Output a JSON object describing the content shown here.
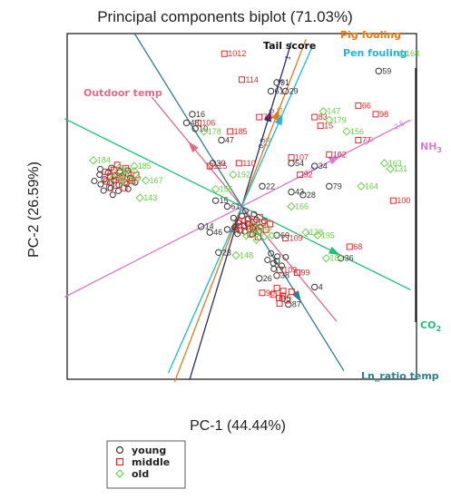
{
  "chart_data": {
    "type": "scatter",
    "subtype": "biplot",
    "title": "Principal components biplot (71.03%)",
    "xlabel": "PC-1  (44.44%)",
    "ylabel": "PC-2 (26.59%)",
    "xlim": [
      -3,
      3
    ],
    "ylim": [
      -3,
      3
    ],
    "grid": false,
    "legend_position": "bottom-left",
    "colors": {
      "young": "#333333",
      "middle": "#e8262a",
      "old": "#6ccf4a",
      "Tail score": "#2d2a6e",
      "Pig fouling": "#e07b1a",
      "Pen fouling": "#22b5d6",
      "Outdoor temp": "#e06a8a",
      "NH3": "#d67bd6",
      "CO2": "#1fbf7a",
      "Ln_ratio temp": "#2f7f8f"
    },
    "series": [
      {
        "name": "young",
        "marker": "circle",
        "points": [
          {
            "label": "59",
            "x": 2.35,
            "y": 2.35
          },
          {
            "label": "61",
            "x": 0.5,
            "y": 2.0
          },
          {
            "label": "29",
            "x": 0.75,
            "y": 2.0
          },
          {
            "label": "91",
            "x": 0.6,
            "y": 2.15
          },
          {
            "label": "16",
            "x": -0.85,
            "y": 1.6
          },
          {
            "label": "48",
            "x": -0.95,
            "y": 1.45
          },
          {
            "label": "10",
            "x": -0.8,
            "y": 1.35
          },
          {
            "label": "47",
            "x": -0.35,
            "y": 1.15
          },
          {
            "label": "30",
            "x": -0.5,
            "y": 0.75
          },
          {
            "label": "54",
            "x": 0.85,
            "y": 0.75
          },
          {
            "label": "34",
            "x": 1.25,
            "y": 0.7
          },
          {
            "label": "22",
            "x": 0.35,
            "y": 0.35
          },
          {
            "label": "43",
            "x": 0.85,
            "y": 0.25
          },
          {
            "label": "28",
            "x": 1.05,
            "y": 0.2
          },
          {
            "label": "79",
            "x": 1.5,
            "y": 0.35
          },
          {
            "label": "15",
            "x": -0.45,
            "y": 0.1
          },
          {
            "label": "61",
            "x": -0.25,
            "y": 0.0
          },
          {
            "label": "14",
            "x": -0.7,
            "y": -0.35
          },
          {
            "label": "46",
            "x": -0.55,
            "y": -0.45
          },
          {
            "label": "33",
            "x": -0.25,
            "y": -0.4
          },
          {
            "label": "60",
            "x": 0.6,
            "y": -0.5
          },
          {
            "label": "23",
            "x": -0.4,
            "y": -0.8
          },
          {
            "label": "36",
            "x": 1.7,
            "y": -0.9
          },
          {
            "label": "38",
            "x": 0.6,
            "y": -1.2
          },
          {
            "label": "26",
            "x": 0.3,
            "y": -1.25
          },
          {
            "label": "4",
            "x": 1.25,
            "y": -1.4
          },
          {
            "label": "87",
            "x": 0.8,
            "y": -1.7
          },
          {
            "label": "5",
            "x": 0.7,
            "y": -1.6
          }
        ]
      },
      {
        "name": "middle",
        "marker": "square",
        "points": [
          {
            "label": "1012",
            "x": -0.3,
            "y": 2.65
          },
          {
            "label": "114",
            "x": 0.0,
            "y": 2.2
          },
          {
            "label": "66",
            "x": 2.0,
            "y": 1.75
          },
          {
            "label": "98",
            "x": 2.3,
            "y": 1.6
          },
          {
            "label": "78",
            "x": 0.3,
            "y": 1.55
          },
          {
            "label": "83",
            "x": 1.25,
            "y": 1.55
          },
          {
            "label": "15",
            "x": 1.35,
            "y": 1.4
          },
          {
            "label": "185",
            "x": -0.2,
            "y": 1.3
          },
          {
            "label": "106",
            "x": -0.75,
            "y": 1.45
          },
          {
            "label": "77",
            "x": 2.0,
            "y": 1.15
          },
          {
            "label": "102",
            "x": 1.5,
            "y": 0.9
          },
          {
            "label": "107",
            "x": 0.85,
            "y": 0.85
          },
          {
            "label": "110",
            "x": -0.05,
            "y": 0.75
          },
          {
            "label": "125",
            "x": -0.55,
            "y": 0.7
          },
          {
            "label": "100",
            "x": 2.6,
            "y": 0.1
          },
          {
            "label": "92",
            "x": 1.0,
            "y": 0.55
          },
          {
            "label": "109",
            "x": 0.75,
            "y": -0.55
          },
          {
            "label": "68",
            "x": 1.85,
            "y": -0.7
          },
          {
            "label": "103",
            "x": 0.65,
            "y": -1.1
          },
          {
            "label": "99",
            "x": 0.95,
            "y": -1.15
          },
          {
            "label": "90",
            "x": 0.35,
            "y": -1.5
          },
          {
            "label": "119",
            "x": -0.1,
            "y": -0.35
          }
        ]
      },
      {
        "name": "old",
        "marker": "diamond",
        "points": [
          {
            "label": "168",
            "x": 2.75,
            "y": 2.65
          },
          {
            "label": "178",
            "x": -0.65,
            "y": 1.3
          },
          {
            "label": "147",
            "x": 1.4,
            "y": 1.65
          },
          {
            "label": "179",
            "x": 1.5,
            "y": 1.5
          },
          {
            "label": "156",
            "x": 1.8,
            "y": 1.3
          },
          {
            "label": "192",
            "x": -0.15,
            "y": 0.55
          },
          {
            "label": "163",
            "x": 2.45,
            "y": 0.75
          },
          {
            "label": "131",
            "x": 2.55,
            "y": 0.65
          },
          {
            "label": "164",
            "x": 2.05,
            "y": 0.35
          },
          {
            "label": "166",
            "x": 0.85,
            "y": 0.0
          },
          {
            "label": "138",
            "x": 1.1,
            "y": -0.45
          },
          {
            "label": "195",
            "x": 1.3,
            "y": -0.5
          },
          {
            "label": "155",
            "x": -0.45,
            "y": 0.3
          },
          {
            "label": "167",
            "x": -1.65,
            "y": 0.45
          },
          {
            "label": "143",
            "x": -1.75,
            "y": 0.15
          },
          {
            "label": "184",
            "x": -2.55,
            "y": 0.8
          },
          {
            "label": "185",
            "x": -1.85,
            "y": 0.7
          },
          {
            "label": "182",
            "x": 1.45,
            "y": -0.9
          },
          {
            "label": "148",
            "x": -0.1,
            "y": -0.85
          }
        ]
      }
    ],
    "vectors": [
      {
        "name": "Tail score",
        "x": 0.85,
        "y": 2.85
      },
      {
        "name": "Pig fouling",
        "x": 1.1,
        "y": 2.9
      },
      {
        "name": "Pen fouling",
        "x": 1.2,
        "y": 2.75
      },
      {
        "name": "Outdoor temp",
        "x": -1.55,
        "y": 1.9
      },
      {
        "name": "NH3",
        "x": 2.9,
        "y": 1.5
      },
      {
        "name": "CO2",
        "x": 2.9,
        "y": -1.45
      },
      {
        "name": "Ln_ratio temp",
        "x": 1.75,
        "y": -2.85
      }
    ],
    "vector_labels_display": {
      "Tail score": "Tail score",
      "Pig fouling": "Pig fouling",
      "Pen fouling": "Pen fouling",
      "Outdoor temp": "Outdoor temp",
      "NH3": "NH",
      "CO2": "CO",
      "Ln_ratio temp": "Ln_ratio temp"
    },
    "axis_ticks": {
      "Tail score": [
        "0.5",
        "1.0",
        "1.5",
        "1"
      ],
      "NH3": [
        "-1.0",
        "1.5",
        "2.0",
        "2.5"
      ],
      "CO2": [
        "2"
      ],
      "Outdoor temp": [
        "2"
      ],
      "Pig fouling": [
        "1.0",
        "1.5"
      ]
    }
  }
}
